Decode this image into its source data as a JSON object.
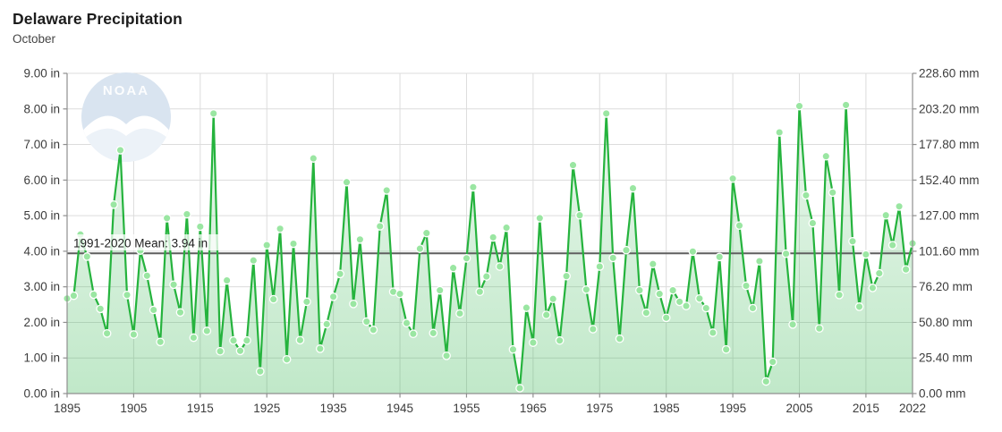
{
  "header": {
    "title": "Delaware Precipitation",
    "subtitle": "October"
  },
  "watermark": {
    "text": "NOAA"
  },
  "chart_data": {
    "type": "line",
    "title": "Delaware Precipitation",
    "subtitle": "October",
    "xlim": [
      1895,
      2022
    ],
    "ylim": [
      0,
      9
    ],
    "y2lim": [
      0,
      228.6
    ],
    "unit_left": "in",
    "unit_right": "mm",
    "grid": true,
    "mean_line": {
      "label": "1991-2020 Mean: 3.94 in",
      "value": 3.94
    },
    "x_ticks": [
      "1895",
      "1905",
      "1915",
      "1925",
      "1935",
      "1945",
      "1955",
      "1965",
      "1975",
      "1985",
      "1995",
      "2005",
      "2015",
      "2022"
    ],
    "y_ticks_in": [
      "9.00 in",
      "8.00 in",
      "7.00 in",
      "6.00 in",
      "5.00 in",
      "4.00 in",
      "3.00 in",
      "2.00 in",
      "1.00 in",
      "0.00 in"
    ],
    "y_ticks_mm": [
      "228.60 mm",
      "203.20 mm",
      "177.80 mm",
      "152.40 mm",
      "127.00 mm",
      "101.60 mm",
      "76.20 mm",
      "50.80 mm",
      "25.40 mm",
      "0.00 mm"
    ],
    "x": [
      1895,
      1896,
      1897,
      1898,
      1899,
      1900,
      1901,
      1902,
      1903,
      1904,
      1905,
      1906,
      1907,
      1908,
      1909,
      1910,
      1911,
      1912,
      1913,
      1914,
      1915,
      1916,
      1917,
      1918,
      1919,
      1920,
      1921,
      1922,
      1923,
      1924,
      1925,
      1926,
      1927,
      1928,
      1929,
      1930,
      1931,
      1932,
      1933,
      1934,
      1935,
      1936,
      1937,
      1938,
      1939,
      1940,
      1941,
      1942,
      1943,
      1944,
      1945,
      1946,
      1947,
      1948,
      1949,
      1950,
      1951,
      1952,
      1953,
      1954,
      1955,
      1956,
      1957,
      1958,
      1959,
      1960,
      1961,
      1962,
      1963,
      1964,
      1965,
      1966,
      1967,
      1968,
      1969,
      1970,
      1971,
      1972,
      1973,
      1974,
      1975,
      1976,
      1977,
      1978,
      1979,
      1980,
      1981,
      1982,
      1983,
      1984,
      1985,
      1986,
      1987,
      1988,
      1989,
      1990,
      1991,
      1992,
      1993,
      1994,
      1995,
      1996,
      1997,
      1998,
      1999,
      2000,
      2001,
      2002,
      2003,
      2004,
      2005,
      2006,
      2007,
      2008,
      2009,
      2010,
      2011,
      2012,
      2013,
      2014,
      2015,
      2016,
      2017,
      2018,
      2019,
      2020,
      2021,
      2022
    ],
    "values": [
      2.67,
      2.75,
      4.47,
      3.85,
      2.78,
      2.38,
      1.69,
      5.31,
      6.84,
      2.77,
      1.66,
      4.02,
      3.31,
      2.35,
      1.45,
      4.93,
      3.06,
      2.28,
      5.04,
      1.57,
      4.69,
      1.76,
      7.87,
      1.19,
      3.18,
      1.49,
      1.2,
      1.49,
      3.74,
      0.62,
      4.17,
      2.65,
      4.63,
      0.96,
      4.21,
      1.5,
      2.58,
      6.61,
      1.26,
      1.95,
      2.72,
      3.36,
      5.94,
      2.52,
      4.33,
      2.02,
      1.79,
      4.7,
      5.71,
      2.86,
      2.8,
      1.98,
      1.68,
      4.07,
      4.51,
      1.7,
      2.9,
      1.06,
      3.53,
      2.25,
      3.8,
      5.8,
      2.86,
      3.29,
      4.39,
      3.57,
      4.66,
      1.24,
      0.15,
      2.41,
      1.43,
      4.93,
      2.21,
      2.66,
      1.49,
      3.3,
      6.42,
      5.01,
      2.92,
      1.81,
      3.57,
      7.87,
      3.81,
      1.54,
      4.03,
      5.77,
      2.9,
      2.27,
      3.64,
      2.8,
      2.13,
      2.9,
      2.58,
      2.46,
      3.99,
      2.67,
      2.4,
      1.71,
      3.84,
      1.24,
      6.04,
      4.72,
      3.03,
      2.4,
      3.72,
      0.34,
      0.89,
      7.34,
      3.93,
      1.94,
      8.08,
      5.57,
      4.79,
      1.83,
      6.67,
      5.65,
      2.77,
      8.11,
      4.28,
      2.44,
      3.91,
      2.97,
      3.38,
      5.01,
      4.17,
      5.26,
      3.49,
      4.22
    ],
    "colors": {
      "line": "#25b33d",
      "marker": "#9ae6a2",
      "marker_stroke": "#ffffff",
      "area_rgb": "46,179,74",
      "mean": "#5f5f5f",
      "grid": "#dcdcdc",
      "axis": "#8f8f8f",
      "text": "#3c3c3c",
      "label": "#1d1d1d",
      "watermark_blue": "#d9e4f0"
    }
  }
}
